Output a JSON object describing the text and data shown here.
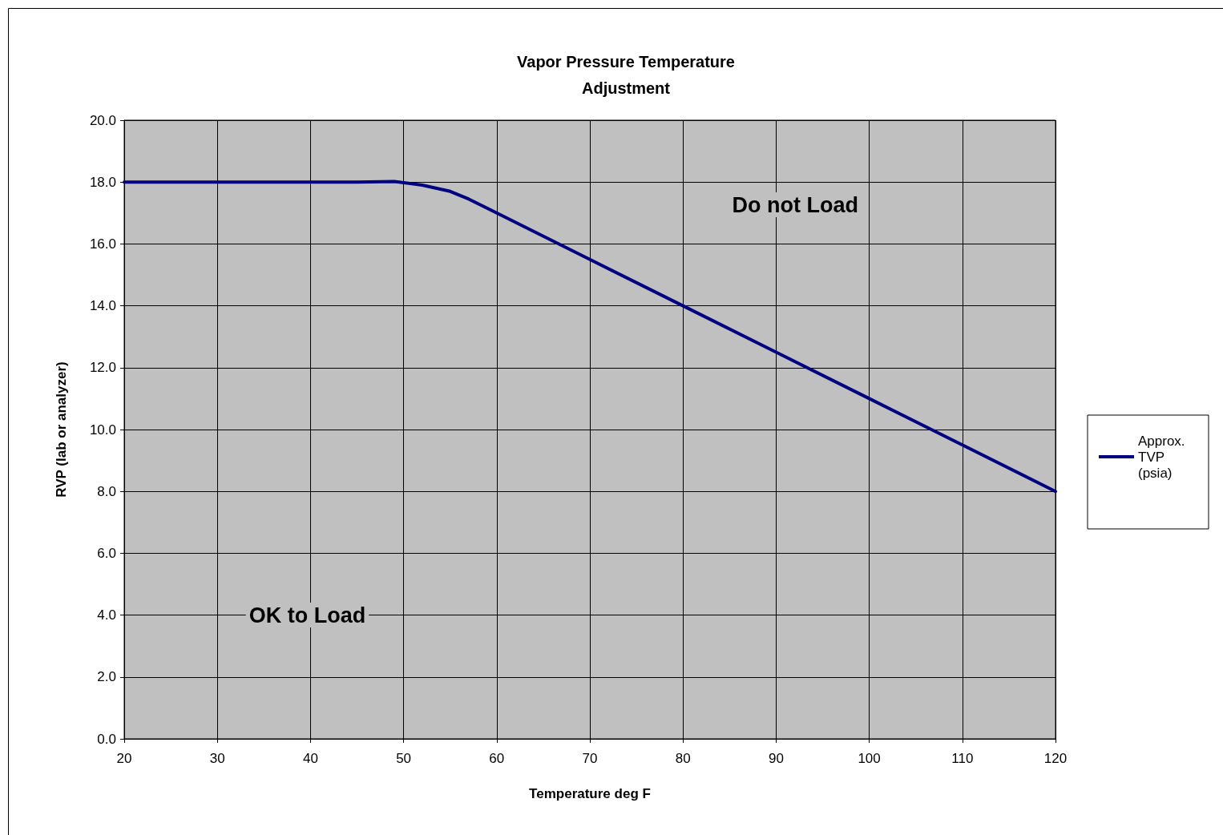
{
  "chart_data": {
    "type": "line",
    "title": "Vapor Pressure Temperature\nAdjustment",
    "xlabel": "Temperature deg F",
    "ylabel": "RVP (lab or analyzer)",
    "x": [
      20,
      25,
      30,
      35,
      40,
      45,
      49,
      52,
      55,
      57,
      60,
      70,
      80,
      90,
      100,
      110,
      120
    ],
    "series": [
      {
        "name": "Approx. TVP (psia)",
        "color": "#000080",
        "values": [
          18.0,
          18.0,
          18.0,
          18.0,
          18.0,
          18.0,
          18.02,
          17.9,
          17.7,
          17.45,
          17.0,
          15.5,
          14.0,
          12.5,
          11.0,
          9.5,
          8.0
        ]
      }
    ],
    "xlim": [
      20,
      120
    ],
    "xticks": [
      20,
      30,
      40,
      50,
      60,
      70,
      80,
      90,
      100,
      110,
      120
    ],
    "ylim": [
      0,
      20
    ],
    "yticks": [
      {
        "value": 0,
        "label": "0.0"
      },
      {
        "value": 2,
        "label": "2.0"
      },
      {
        "value": 4,
        "label": "4.0"
      },
      {
        "value": 6,
        "label": "6.0"
      },
      {
        "value": 8,
        "label": "8.0"
      },
      {
        "value": 10,
        "label": "10.0"
      },
      {
        "value": 12,
        "label": "12.0"
      },
      {
        "value": 14,
        "label": "14.0"
      },
      {
        "value": 16,
        "label": "16.0"
      },
      {
        "value": 18,
        "label": "18.0"
      },
      {
        "value": 20,
        "label": "20.0"
      }
    ],
    "annotations": [
      "Do not Load",
      "OK to Load"
    ],
    "grid": true,
    "legend": "right",
    "marker": "none",
    "line_style": "solid"
  }
}
